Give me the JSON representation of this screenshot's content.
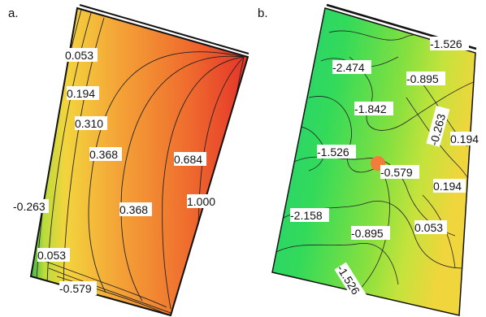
{
  "panel_a": {
    "letter": "a.",
    "labels": [
      "0.053",
      "0.194",
      "0.310",
      "0.368",
      "0.684",
      "1.000",
      "-0.263",
      "0.368",
      "0.053",
      "-0.579"
    ]
  },
  "panel_b": {
    "letter": "b.",
    "labels": [
      "-1.526",
      "-2.474",
      "-0.895",
      "-1.842",
      "-0.263",
      "0.194",
      "-1.526",
      "-0.579",
      "0.194",
      "-2.158",
      "-0.895",
      "0.053",
      "-1.526"
    ]
  }
}
